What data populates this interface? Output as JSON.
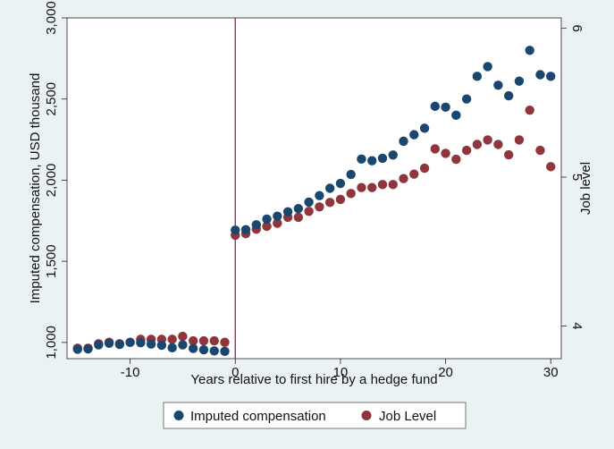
{
  "chart_data": {
    "type": "scatter",
    "xlabel": "Years relative to first hire by a hedge fund",
    "ylabel": "Imputed compensation, USD thousand",
    "y2label": "Job level",
    "xlim": [
      -16,
      31
    ],
    "ylim": [
      900,
      3000
    ],
    "y2lim": [
      3.78,
      6.07
    ],
    "xticks": [
      {
        "value": -10,
        "label": "-10"
      },
      {
        "value": 0,
        "label": "0"
      },
      {
        "value": 10,
        "label": "10"
      },
      {
        "value": 20,
        "label": "20"
      },
      {
        "value": 30,
        "label": "30"
      }
    ],
    "yticks": [
      {
        "value": 1000,
        "label": "1,000"
      },
      {
        "value": 1500,
        "label": "1,500"
      },
      {
        "value": 2000,
        "label": "2,000"
      },
      {
        "value": 2500,
        "label": "2,500"
      },
      {
        "value": 3000,
        "label": "3,000"
      }
    ],
    "y2ticks": [
      {
        "value": 4,
        "label": "4"
      },
      {
        "value": 5,
        "label": "5"
      },
      {
        "value": 6,
        "label": "6"
      }
    ],
    "vline": {
      "x": 0,
      "color": "#a3256b"
    },
    "grid": false,
    "legend_position": "bottom",
    "series": [
      {
        "name": "Imputed compensation",
        "axis": "left",
        "color": "#1a476f",
        "x": [
          -15,
          -14,
          -13,
          -12,
          -11,
          -10,
          -9,
          -8,
          -7,
          -6,
          -5,
          -4,
          -3,
          -2,
          -1,
          0,
          1,
          2,
          3,
          4,
          5,
          6,
          7,
          8,
          9,
          10,
          11,
          12,
          13,
          14,
          15,
          16,
          17,
          18,
          19,
          20,
          21,
          22,
          23,
          24,
          25,
          26,
          27,
          28,
          29,
          30
        ],
        "y": [
          958,
          960,
          985,
          995,
          988,
          1000,
          998,
          990,
          983,
          967,
          985,
          963,
          955,
          948,
          945,
          1692,
          1695,
          1725,
          1760,
          1778,
          1805,
          1825,
          1865,
          1905,
          1950,
          1980,
          2035,
          2130,
          2120,
          2135,
          2155,
          2240,
          2280,
          2320,
          2455,
          2450,
          2400,
          2500,
          2640,
          2700,
          2585,
          2520,
          2610,
          2800,
          2650,
          2640
        ]
      },
      {
        "name": "Job Level",
        "axis": "right",
        "color": "#90353b",
        "x": [
          -15,
          -14,
          -13,
          -12,
          -11,
          -10,
          -9,
          -8,
          -7,
          -6,
          -5,
          -4,
          -3,
          -2,
          -1,
          0,
          1,
          2,
          3,
          4,
          5,
          6,
          7,
          8,
          9,
          10,
          11,
          12,
          13,
          14,
          15,
          16,
          17,
          18,
          19,
          20,
          21,
          22,
          23,
          24,
          25,
          26,
          27,
          28,
          29,
          30
        ],
        "y": [
          3.85,
          3.85,
          3.88,
          3.89,
          3.88,
          3.89,
          3.91,
          3.91,
          3.91,
          3.91,
          3.93,
          3.9,
          3.9,
          3.9,
          3.89,
          4.61,
          4.62,
          4.65,
          4.67,
          4.69,
          4.73,
          4.73,
          4.77,
          4.8,
          4.83,
          4.85,
          4.89,
          4.93,
          4.93,
          4.95,
          4.95,
          4.99,
          5.02,
          5.06,
          5.19,
          5.16,
          5.12,
          5.18,
          5.22,
          5.25,
          5.22,
          5.15,
          5.25,
          5.45,
          5.18,
          5.07
        ]
      }
    ]
  }
}
